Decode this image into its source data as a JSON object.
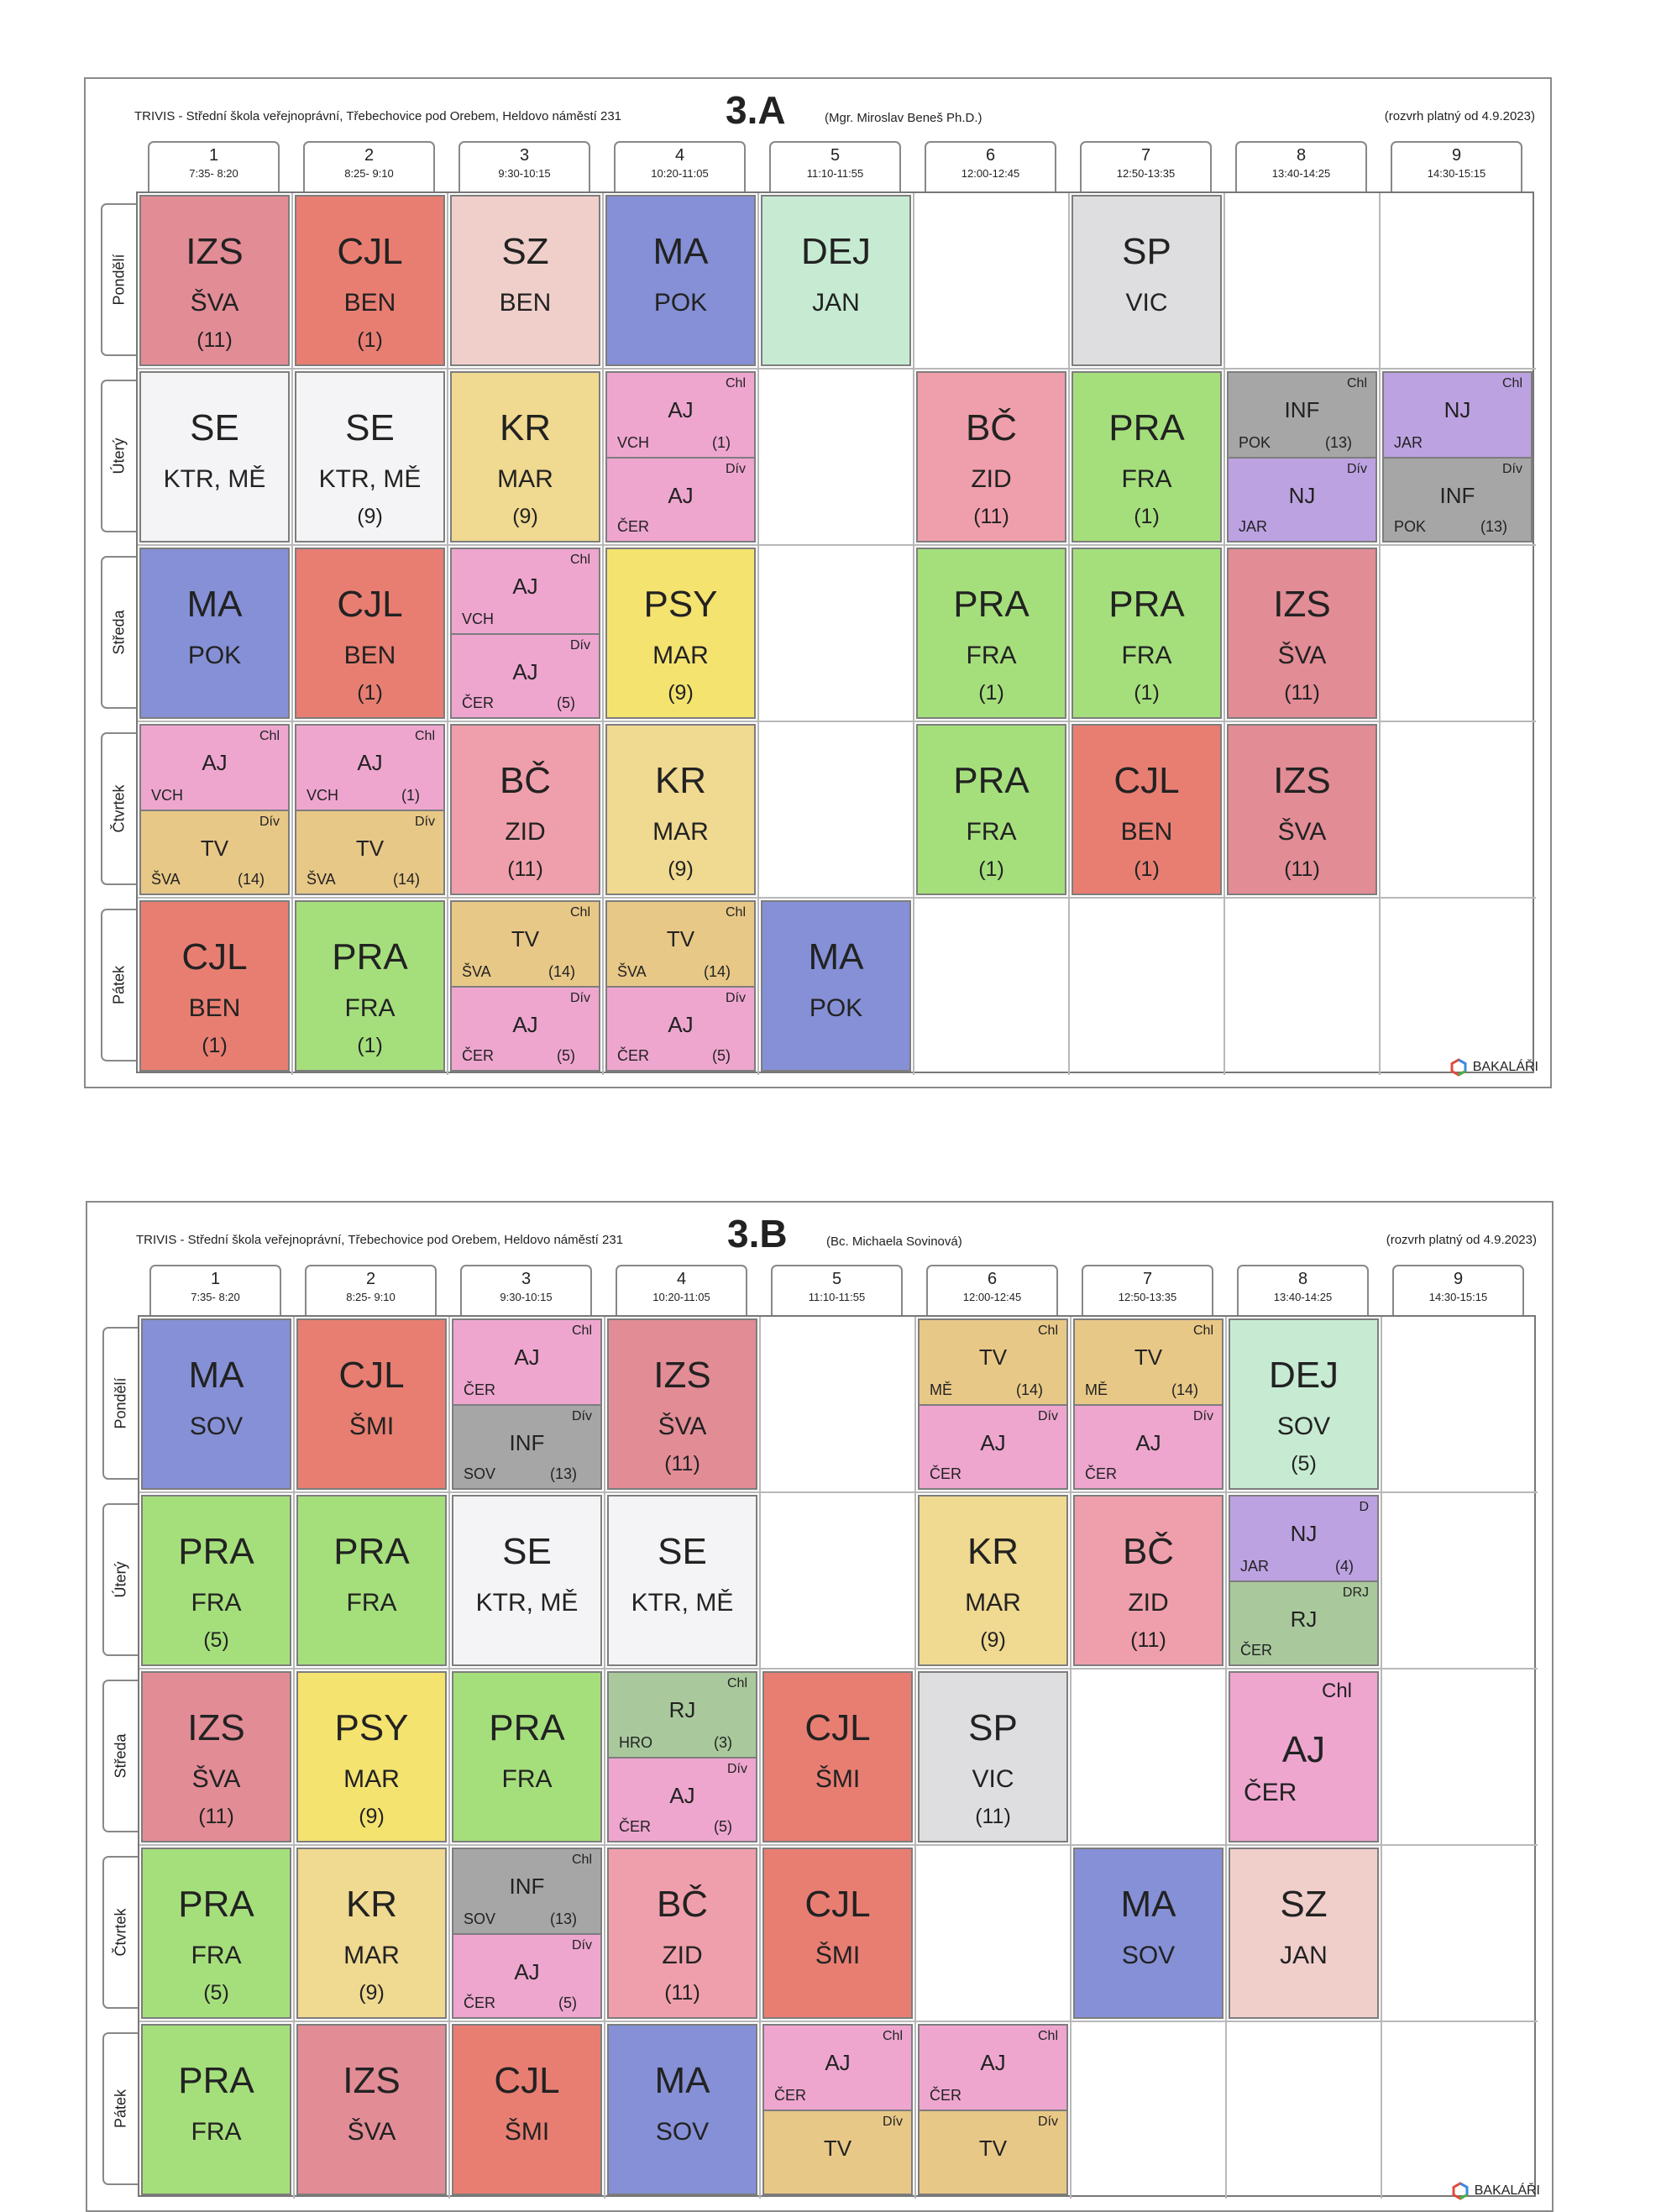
{
  "school": "TRIVIS - Střední škola veřejnoprávní, Třebechovice pod Orebem, Heldovo náměstí 231",
  "periods": [
    {
      "n": "1",
      "t": "7:35- 8:20"
    },
    {
      "n": "2",
      "t": "8:25- 9:10"
    },
    {
      "n": "3",
      "t": "9:30-10:15"
    },
    {
      "n": "4",
      "t": "10:20-11:05"
    },
    {
      "n": "5",
      "t": "11:10-11:55"
    },
    {
      "n": "6",
      "t": "12:00-12:45"
    },
    {
      "n": "7",
      "t": "12:50-13:35"
    },
    {
      "n": "8",
      "t": "13:40-14:25"
    },
    {
      "n": "9",
      "t": "14:30-15:15"
    }
  ],
  "days": [
    "Pondělí",
    "Úterý",
    "Středa",
    "Čtvrtek",
    "Pátek"
  ],
  "logo_text": "BAKALÁŘI",
  "timetables": [
    {
      "class": "3.A",
      "teacher": "(Mgr. Miroslav Beneš Ph.D.)",
      "valid": "(rozvrh platný od 4.9.2023)",
      "lessons": [
        {
          "d": 0,
          "p": 0,
          "s": "IZS",
          "t": "ŠVA",
          "r": "(11)",
          "c": "IZS"
        },
        {
          "d": 0,
          "p": 1,
          "s": "CJL",
          "t": "BEN",
          "r": "(1)",
          "c": "CJL"
        },
        {
          "d": 0,
          "p": 2,
          "s": "SZ",
          "t": "BEN",
          "r": "",
          "c": "SZ"
        },
        {
          "d": 0,
          "p": 3,
          "s": "MA",
          "t": "POK",
          "r": "",
          "c": "MA"
        },
        {
          "d": 0,
          "p": 4,
          "s": "DEJ",
          "t": "JAN",
          "r": "",
          "c": "DEJ"
        },
        {
          "d": 0,
          "p": 6,
          "s": "SP",
          "t": "VIC",
          "r": "",
          "c": "SP"
        },
        {
          "d": 1,
          "p": 0,
          "s": "SE",
          "t": "KTR, MĚ",
          "r": "",
          "c": "SE"
        },
        {
          "d": 1,
          "p": 1,
          "s": "SE",
          "t": "KTR, MĚ",
          "r": "(9)",
          "c": "SE"
        },
        {
          "d": 1,
          "p": 2,
          "s": "KR",
          "t": "MAR",
          "r": "(9)",
          "c": "KR"
        },
        {
          "d": 1,
          "p": 3,
          "split": [
            {
              "g": "Chl",
              "s": "AJ",
              "t": "VCH",
              "r": "(1)",
              "c": "AJ"
            },
            {
              "g": "Dív",
              "s": "AJ",
              "t": "ČER",
              "r": "",
              "c": "AJ"
            }
          ]
        },
        {
          "d": 1,
          "p": 5,
          "s": "BČ",
          "t": "ZID",
          "r": "(11)",
          "c": "BC"
        },
        {
          "d": 1,
          "p": 6,
          "s": "PRA",
          "t": "FRA",
          "r": "(1)",
          "c": "PRA"
        },
        {
          "d": 1,
          "p": 7,
          "split": [
            {
              "g": "Chl",
              "s": "INF",
              "t": "POK",
              "r": "(13)",
              "c": "INF"
            },
            {
              "g": "Dív",
              "s": "NJ",
              "t": "JAR",
              "r": "",
              "c": "NJ"
            }
          ]
        },
        {
          "d": 1,
          "p": 8,
          "split": [
            {
              "g": "Chl",
              "s": "NJ",
              "t": "JAR",
              "r": "",
              "c": "NJ"
            },
            {
              "g": "Dív",
              "s": "INF",
              "t": "POK",
              "r": "(13)",
              "c": "INF"
            }
          ]
        },
        {
          "d": 2,
          "p": 0,
          "s": "MA",
          "t": "POK",
          "r": "",
          "c": "MA"
        },
        {
          "d": 2,
          "p": 1,
          "s": "CJL",
          "t": "BEN",
          "r": "(1)",
          "c": "CJL"
        },
        {
          "d": 2,
          "p": 2,
          "split": [
            {
              "g": "Chl",
              "s": "AJ",
              "t": "VCH",
              "r": "",
              "c": "AJ"
            },
            {
              "g": "Dív",
              "s": "AJ",
              "t": "ČER",
              "r": "(5)",
              "c": "AJ"
            }
          ]
        },
        {
          "d": 2,
          "p": 3,
          "s": "PSY",
          "t": "MAR",
          "r": "(9)",
          "c": "PSY"
        },
        {
          "d": 2,
          "p": 5,
          "s": "PRA",
          "t": "FRA",
          "r": "(1)",
          "c": "PRA"
        },
        {
          "d": 2,
          "p": 6,
          "s": "PRA",
          "t": "FRA",
          "r": "(1)",
          "c": "PRA"
        },
        {
          "d": 2,
          "p": 7,
          "s": "IZS",
          "t": "ŠVA",
          "r": "(11)",
          "c": "IZS"
        },
        {
          "d": 3,
          "p": 0,
          "split": [
            {
              "g": "Chl",
              "s": "AJ",
              "t": "VCH",
              "r": "",
              "c": "AJ"
            },
            {
              "g": "Dív",
              "s": "TV",
              "t": "ŠVA",
              "r": "(14)",
              "c": "TV"
            }
          ]
        },
        {
          "d": 3,
          "p": 1,
          "split": [
            {
              "g": "Chl",
              "s": "AJ",
              "t": "VCH",
              "r": "(1)",
              "c": "AJ"
            },
            {
              "g": "Dív",
              "s": "TV",
              "t": "ŠVA",
              "r": "(14)",
              "c": "TV"
            }
          ]
        },
        {
          "d": 3,
          "p": 2,
          "s": "BČ",
          "t": "ZID",
          "r": "(11)",
          "c": "BC"
        },
        {
          "d": 3,
          "p": 3,
          "s": "KR",
          "t": "MAR",
          "r": "(9)",
          "c": "KR"
        },
        {
          "d": 3,
          "p": 5,
          "s": "PRA",
          "t": "FRA",
          "r": "(1)",
          "c": "PRA"
        },
        {
          "d": 3,
          "p": 6,
          "s": "CJL",
          "t": "BEN",
          "r": "(1)",
          "c": "CJL"
        },
        {
          "d": 3,
          "p": 7,
          "s": "IZS",
          "t": "ŠVA",
          "r": "(11)",
          "c": "IZS"
        },
        {
          "d": 4,
          "p": 0,
          "s": "CJL",
          "t": "BEN",
          "r": "(1)",
          "c": "CJL"
        },
        {
          "d": 4,
          "p": 1,
          "s": "PRA",
          "t": "FRA",
          "r": "(1)",
          "c": "PRA"
        },
        {
          "d": 4,
          "p": 2,
          "split": [
            {
              "g": "Chl",
              "s": "TV",
              "t": "ŠVA",
              "r": "(14)",
              "c": "TV"
            },
            {
              "g": "Dív",
              "s": "AJ",
              "t": "ČER",
              "r": "(5)",
              "c": "AJ"
            }
          ]
        },
        {
          "d": 4,
          "p": 3,
          "split": [
            {
              "g": "Chl",
              "s": "TV",
              "t": "ŠVA",
              "r": "(14)",
              "c": "TV"
            },
            {
              "g": "Dív",
              "s": "AJ",
              "t": "ČER",
              "r": "(5)",
              "c": "AJ"
            }
          ]
        },
        {
          "d": 4,
          "p": 4,
          "s": "MA",
          "t": "POK",
          "r": "",
          "c": "MA"
        }
      ]
    },
    {
      "class": "3.B",
      "teacher": "(Bc. Michaela Sovinová)",
      "valid": "(rozvrh platný od 4.9.2023)",
      "lessons": [
        {
          "d": 0,
          "p": 0,
          "s": "MA",
          "t": "SOV",
          "r": "",
          "c": "MA"
        },
        {
          "d": 0,
          "p": 1,
          "s": "CJL",
          "t": "ŠMI",
          "r": "",
          "c": "CJL"
        },
        {
          "d": 0,
          "p": 2,
          "split": [
            {
              "g": "Chl",
              "s": "AJ",
              "t": "ČER",
              "r": "",
              "c": "AJ"
            },
            {
              "g": "Dív",
              "s": "INF",
              "t": "SOV",
              "r": "(13)",
              "c": "INF"
            }
          ]
        },
        {
          "d": 0,
          "p": 3,
          "s": "IZS",
          "t": "ŠVA",
          "r": "(11)",
          "c": "IZS"
        },
        {
          "d": 0,
          "p": 5,
          "split": [
            {
              "g": "Chl",
              "s": "TV",
              "t": "MĚ",
              "r": "(14)",
              "c": "TV"
            },
            {
              "g": "Dív",
              "s": "AJ",
              "t": "ČER",
              "r": "",
              "c": "AJ"
            }
          ]
        },
        {
          "d": 0,
          "p": 6,
          "split": [
            {
              "g": "Chl",
              "s": "TV",
              "t": "MĚ",
              "r": "(14)",
              "c": "TV"
            },
            {
              "g": "Dív",
              "s": "AJ",
              "t": "ČER",
              "r": "",
              "c": "AJ"
            }
          ]
        },
        {
          "d": 0,
          "p": 7,
          "s": "DEJ",
          "t": "SOV",
          "r": "(5)",
          "c": "DEJ"
        },
        {
          "d": 1,
          "p": 0,
          "s": "PRA",
          "t": "FRA",
          "r": "(5)",
          "c": "PRA"
        },
        {
          "d": 1,
          "p": 1,
          "s": "PRA",
          "t": "FRA",
          "r": "",
          "c": "PRA"
        },
        {
          "d": 1,
          "p": 2,
          "s": "SE",
          "t": "KTR, MĚ",
          "r": "",
          "c": "SE"
        },
        {
          "d": 1,
          "p": 3,
          "s": "SE",
          "t": "KTR, MĚ",
          "r": "",
          "c": "SE"
        },
        {
          "d": 1,
          "p": 5,
          "s": "KR",
          "t": "MAR",
          "r": "(9)",
          "c": "KR"
        },
        {
          "d": 1,
          "p": 6,
          "s": "BČ",
          "t": "ZID",
          "r": "(11)",
          "c": "BC"
        },
        {
          "d": 1,
          "p": 7,
          "split": [
            {
              "g": "D",
              "s": "NJ",
              "t": "JAR",
              "r": "(4)",
              "c": "NJ"
            },
            {
              "g": "DRJ",
              "s": "RJ",
              "t": "ČER",
              "r": "",
              "c": "RJ"
            }
          ]
        },
        {
          "d": 2,
          "p": 0,
          "s": "IZS",
          "t": "ŠVA",
          "r": "(11)",
          "c": "IZS"
        },
        {
          "d": 2,
          "p": 1,
          "s": "PSY",
          "t": "MAR",
          "r": "(9)",
          "c": "PSY"
        },
        {
          "d": 2,
          "p": 2,
          "s": "PRA",
          "t": "FRA",
          "r": "",
          "c": "PRA"
        },
        {
          "d": 2,
          "p": 3,
          "split": [
            {
              "g": "Chl",
              "s": "RJ",
              "t": "HRO",
              "r": "(3)",
              "c": "RJ"
            },
            {
              "g": "Dív",
              "s": "AJ",
              "t": "ČER",
              "r": "(5)",
              "c": "AJ"
            }
          ]
        },
        {
          "d": 2,
          "p": 4,
          "s": "CJL",
          "t": "ŠMI",
          "r": "",
          "c": "CJL"
        },
        {
          "d": 2,
          "p": 5,
          "s": "SP",
          "t": "VIC",
          "r": "(11)",
          "c": "SP"
        },
        {
          "d": 2,
          "p": 7,
          "big": true,
          "g": "Chl",
          "s": "AJ",
          "t": "ČER",
          "c": "AJ"
        },
        {
          "d": 3,
          "p": 0,
          "s": "PRA",
          "t": "FRA",
          "r": "(5)",
          "c": "PRA"
        },
        {
          "d": 3,
          "p": 1,
          "s": "KR",
          "t": "MAR",
          "r": "(9)",
          "c": "KR"
        },
        {
          "d": 3,
          "p": 2,
          "split": [
            {
              "g": "Chl",
              "s": "INF",
              "t": "SOV",
              "r": "(13)",
              "c": "INF"
            },
            {
              "g": "Dív",
              "s": "AJ",
              "t": "ČER",
              "r": "(5)",
              "c": "AJ"
            }
          ]
        },
        {
          "d": 3,
          "p": 3,
          "s": "BČ",
          "t": "ZID",
          "r": "(11)",
          "c": "BC"
        },
        {
          "d": 3,
          "p": 4,
          "s": "CJL",
          "t": "ŠMI",
          "r": "",
          "c": "CJL"
        },
        {
          "d": 3,
          "p": 6,
          "s": "MA",
          "t": "SOV",
          "r": "",
          "c": "MA"
        },
        {
          "d": 3,
          "p": 7,
          "s": "SZ",
          "t": "JAN",
          "r": "",
          "c": "SZ"
        },
        {
          "d": 4,
          "p": 0,
          "s": "PRA",
          "t": "FRA",
          "r": "",
          "c": "PRA"
        },
        {
          "d": 4,
          "p": 1,
          "s": "IZS",
          "t": "ŠVA",
          "r": "",
          "c": "IZS"
        },
        {
          "d": 4,
          "p": 2,
          "s": "CJL",
          "t": "ŠMI",
          "r": "",
          "c": "CJL"
        },
        {
          "d": 4,
          "p": 3,
          "s": "MA",
          "t": "SOV",
          "r": "",
          "c": "MA"
        },
        {
          "d": 4,
          "p": 4,
          "split": [
            {
              "g": "Chl",
              "s": "AJ",
              "t": "ČER",
              "r": "",
              "c": "AJ"
            },
            {
              "g": "Dív",
              "s": "TV",
              "t": "",
              "r": "",
              "c": "TV"
            }
          ]
        },
        {
          "d": 4,
          "p": 5,
          "split": [
            {
              "g": "Chl",
              "s": "AJ",
              "t": "ČER",
              "r": "",
              "c": "AJ"
            },
            {
              "g": "Dív",
              "s": "TV",
              "t": "",
              "r": "",
              "c": "TV"
            }
          ]
        }
      ]
    }
  ]
}
